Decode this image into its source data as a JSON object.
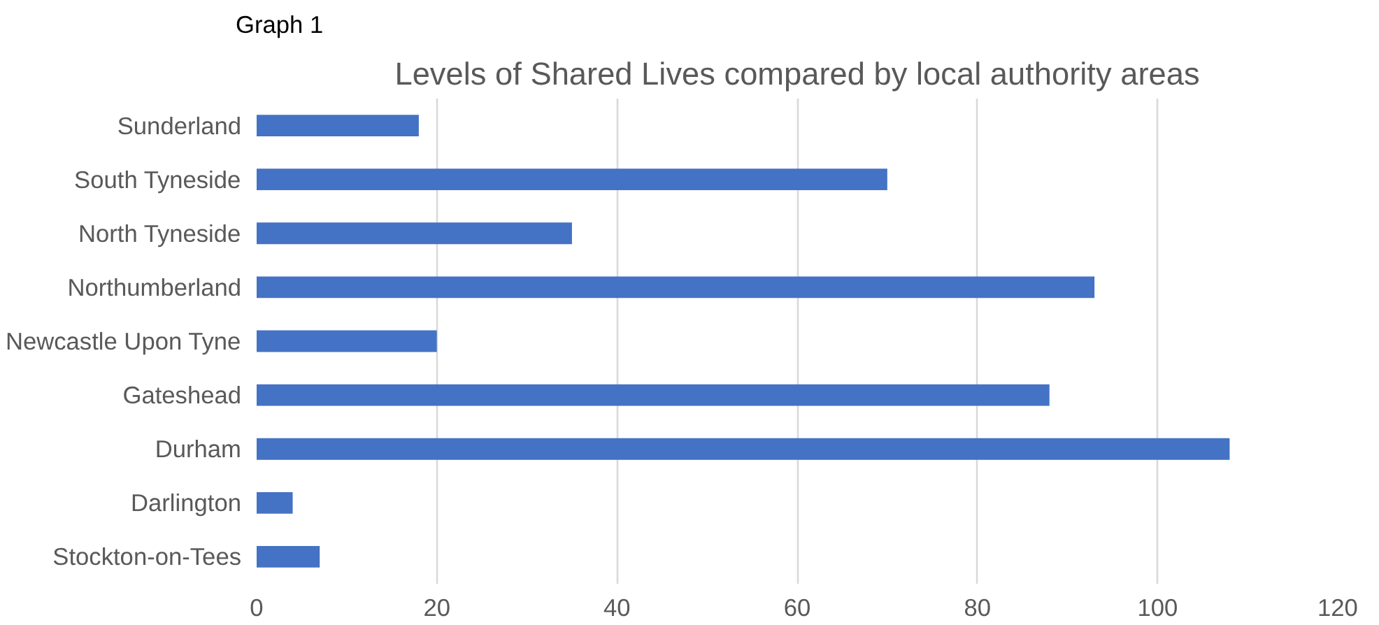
{
  "chart_data": {
    "type": "bar",
    "orientation": "horizontal",
    "title": "Levels of Shared Lives compared by local authority areas",
    "categories": [
      "Sunderland",
      "South Tyneside",
      "North Tyneside",
      "Northumberland",
      "Newcastle Upon Tyne",
      "Gateshead",
      "Durham",
      "Darlington",
      "Stockton-on-Tees"
    ],
    "values": [
      18,
      70,
      35,
      93,
      20,
      88,
      108,
      4,
      7
    ],
    "color": "#4472c4",
    "xlim": [
      0,
      120
    ],
    "xticks": [
      0,
      20,
      40,
      60,
      80,
      100,
      120
    ],
    "grid": "x",
    "annotations": [
      "Graph 1"
    ]
  }
}
